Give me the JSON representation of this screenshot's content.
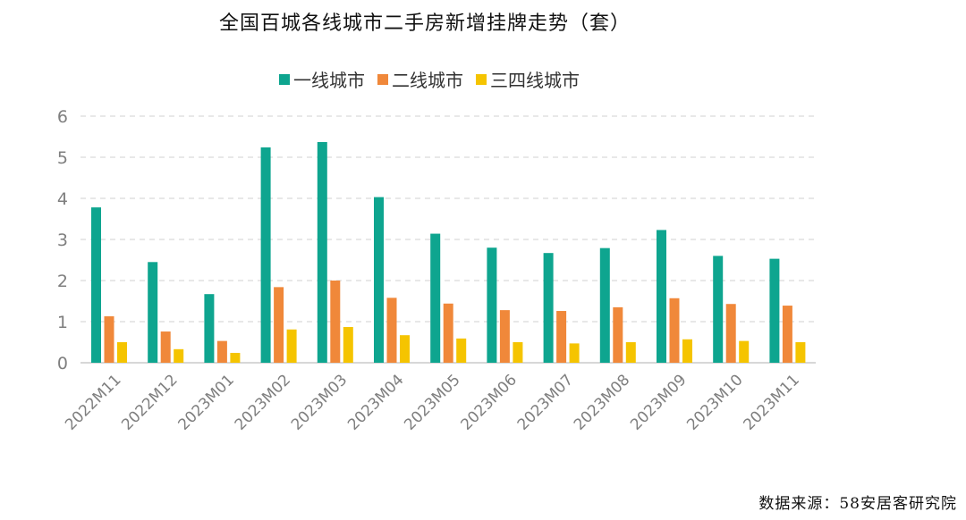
{
  "chart_data": {
    "type": "bar",
    "title": "全国百城各线城市二手房新增挂牌走势（套）",
    "categories": [
      "2022M11",
      "2022M12",
      "2023M01",
      "2023M02",
      "2023M03",
      "2023M04",
      "2023M05",
      "2023M06",
      "2023M07",
      "2023M08",
      "2023M09",
      "2023M10",
      "2023M11"
    ],
    "series": [
      {
        "name": "一线城市",
        "color": "#0ea58f",
        "values": [
          3.78,
          2.45,
          1.67,
          5.24,
          5.37,
          4.03,
          3.14,
          2.8,
          2.67,
          2.79,
          3.23,
          2.6,
          2.53
        ]
      },
      {
        "name": "二线城市",
        "color": "#f0883a",
        "values": [
          1.13,
          0.76,
          0.53,
          1.84,
          2.0,
          1.58,
          1.44,
          1.28,
          1.26,
          1.35,
          1.57,
          1.43,
          1.39
        ]
      },
      {
        "name": "三四线城市",
        "color": "#f5c400",
        "values": [
          0.5,
          0.33,
          0.24,
          0.81,
          0.87,
          0.67,
          0.59,
          0.5,
          0.47,
          0.5,
          0.57,
          0.53,
          0.5
        ]
      }
    ],
    "ylim": [
      0,
      6
    ],
    "yticks": [
      "0",
      "1",
      "2",
      "3",
      "4",
      "5",
      "6"
    ],
    "grid": true,
    "legend": "top-center",
    "xlabel": "",
    "ylabel": ""
  },
  "source_note": "数据来源：58安居客研究院"
}
